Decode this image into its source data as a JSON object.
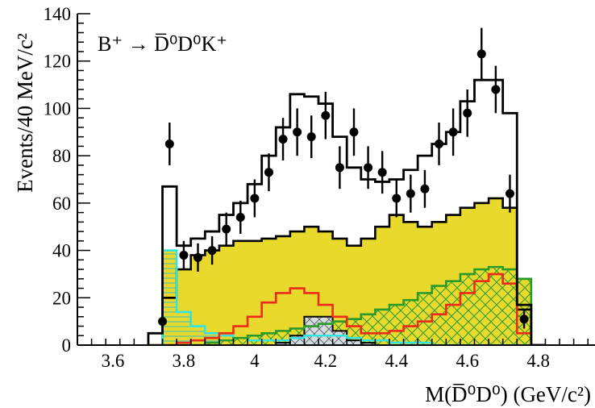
{
  "chart_data": {
    "type": "histogram",
    "process_label": "B⁺ → D̅⁰D⁰K⁺",
    "xlabel": "M(D̅⁰D⁰)  (GeV/c²)",
    "ylabel": "Events/40 MeV/c²",
    "xlim": [
      3.5,
      4.96
    ],
    "ylim": [
      0,
      140
    ],
    "x_ticks": [
      "3.6",
      "3.8",
      "4",
      "4.2",
      "4.4",
      "4.6",
      "4.8"
    ],
    "x_tick_values": [
      3.6,
      3.8,
      4.0,
      4.2,
      4.4,
      4.6,
      4.8
    ],
    "y_ticks": [
      "0",
      "20",
      "40",
      "60",
      "80",
      "100",
      "120",
      "140"
    ],
    "y_tick_values": [
      0,
      20,
      40,
      60,
      80,
      100,
      120,
      140
    ],
    "bin_width": 0.04,
    "bin_low_edges": [
      3.7,
      3.74,
      3.78,
      3.82,
      3.86,
      3.9,
      3.94,
      3.98,
      4.02,
      4.06,
      4.1,
      4.14,
      4.18,
      4.22,
      4.26,
      4.3,
      4.34,
      4.38,
      4.42,
      4.46,
      4.5,
      4.54,
      4.58,
      4.62,
      4.66,
      4.7,
      4.74,
      4.78
    ],
    "data_points": {
      "x": [
        3.74,
        3.76,
        3.8,
        3.84,
        3.88,
        3.92,
        3.96,
        4.0,
        4.04,
        4.08,
        4.12,
        4.16,
        4.2,
        4.24,
        4.28,
        4.32,
        4.36,
        4.4,
        4.44,
        4.48,
        4.52,
        4.56,
        4.6,
        4.64,
        4.68,
        4.72,
        4.76
      ],
      "y": [
        10,
        85,
        38,
        37,
        40,
        49,
        54,
        62,
        73,
        87,
        90,
        88,
        97,
        75,
        90,
        75,
        73,
        62,
        64,
        66,
        85,
        90,
        98,
        123,
        108,
        64,
        11
      ],
      "err": [
        4,
        9,
        6,
        6,
        6,
        7,
        7,
        8,
        8,
        9,
        10,
        9,
        10,
        9,
        10,
        9,
        9,
        8,
        8,
        8,
        9,
        10,
        10,
        11,
        10,
        8,
        4
      ]
    },
    "series": [
      {
        "component": "total",
        "color": "#000000",
        "values": [
          5,
          67,
          42,
          45,
          48,
          55,
          60,
          68,
          80,
          92,
          106,
          105,
          102,
          88,
          75,
          70,
          69,
          70,
          74,
          80,
          85,
          90,
          103,
          112,
          112,
          98,
          17,
          0
        ]
      },
      {
        "component": "broad",
        "color": "#e8d92c",
        "values": [
          0,
          20,
          32,
          38,
          40,
          42,
          44,
          44,
          45,
          46,
          48,
          50,
          48,
          45,
          42,
          45,
          50,
          55,
          52,
          50,
          52,
          55,
          58,
          60,
          62,
          58,
          15,
          0
        ]
      },
      {
        "component": "red",
        "color": "#ee2a1a",
        "values": [
          0,
          0,
          1,
          2,
          3,
          5,
          8,
          12,
          18,
          22,
          24,
          22,
          17,
          12,
          8,
          5,
          5,
          6,
          8,
          10,
          13,
          17,
          22,
          27,
          30,
          26,
          5,
          0
        ]
      },
      {
        "component": "green",
        "color": "#2a9a2a",
        "values": [
          0,
          0,
          0,
          0,
          1,
          2,
          3,
          4,
          5,
          6,
          7,
          8,
          9,
          10,
          11,
          13,
          15,
          17,
          19,
          22,
          25,
          27,
          30,
          32,
          33,
          32,
          28,
          0
        ]
      },
      {
        "component": "cyan",
        "color": "#33e3e3",
        "values": [
          0,
          40,
          14,
          8,
          5,
          4,
          3,
          2,
          2,
          2,
          3,
          4,
          4,
          4,
          3,
          2,
          2,
          1,
          1,
          1,
          0,
          0,
          0,
          0,
          0,
          0,
          0,
          0
        ]
      },
      {
        "component": "gray",
        "color": "#777777",
        "values": [
          0,
          0,
          0,
          0,
          0,
          0,
          0,
          0,
          0,
          1,
          4,
          12,
          12,
          6,
          2,
          1,
          0,
          0,
          0,
          0,
          0,
          0,
          0,
          0,
          0,
          0,
          0,
          0
        ]
      }
    ]
  }
}
